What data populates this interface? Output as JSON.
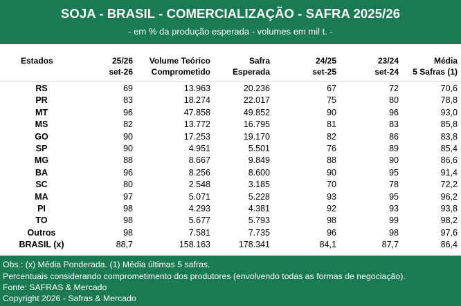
{
  "header": {
    "title": "SOJA - BRASIL - COMERCIALIZAÇÃO - SAFRA 2025/26",
    "subtitle": "- em % da produção esperada - volumes em mil t. -"
  },
  "columns": [
    {
      "line1": "Estados",
      "line2": ""
    },
    {
      "line1": "25/26",
      "line2": "set-26"
    },
    {
      "line1": "Volume Teórico",
      "line2": "Comprometido"
    },
    {
      "line1": "Safra",
      "line2": "Esperada"
    },
    {
      "line1": "24/25",
      "line2": "set-25"
    },
    {
      "line1": "23/24",
      "line2": "set-24"
    },
    {
      "line1": "Média",
      "line2": "5 Safras (1)"
    }
  ],
  "rows": [
    {
      "state": "RS",
      "c1": "69",
      "c2": "13.963",
      "c3": "20.236",
      "c4": "67",
      "c5": "72",
      "c6": "70,6"
    },
    {
      "state": "PR",
      "c1": "83",
      "c2": "18.274",
      "c3": "22.017",
      "c4": "75",
      "c5": "80",
      "c6": "78,8"
    },
    {
      "state": "MT",
      "c1": "96",
      "c2": "47.858",
      "c3": "49.852",
      "c4": "90",
      "c5": "96",
      "c6": "93,0"
    },
    {
      "state": "MS",
      "c1": "82",
      "c2": "13.772",
      "c3": "16.795",
      "c4": "81",
      "c5": "83",
      "c6": "85,8"
    },
    {
      "state": "GO",
      "c1": "90",
      "c2": "17.253",
      "c3": "19.170",
      "c4": "82",
      "c5": "86",
      "c6": "83,8"
    },
    {
      "state": "SP",
      "c1": "90",
      "c2": "4.951",
      "c3": "5.501",
      "c4": "76",
      "c5": "89",
      "c6": "85,4"
    },
    {
      "state": "MG",
      "c1": "88",
      "c2": "8.667",
      "c3": "9.849",
      "c4": "88",
      "c5": "90",
      "c6": "86,6"
    },
    {
      "state": "BA",
      "c1": "96",
      "c2": "8.256",
      "c3": "8.600",
      "c4": "90",
      "c5": "95",
      "c6": "91,4"
    },
    {
      "state": "SC",
      "c1": "80",
      "c2": "2.548",
      "c3": "3.185",
      "c4": "70",
      "c5": "78",
      "c6": "72,2"
    },
    {
      "state": "MA",
      "c1": "97",
      "c2": "5.071",
      "c3": "5.228",
      "c4": "93",
      "c5": "95",
      "c6": "96,2"
    },
    {
      "state": "PI",
      "c1": "98",
      "c2": "4.293",
      "c3": "4.381",
      "c4": "92",
      "c5": "93",
      "c6": "93,8"
    },
    {
      "state": "TO",
      "c1": "98",
      "c2": "5.677",
      "c3": "5.793",
      "c4": "98",
      "c5": "99",
      "c6": "98,2"
    },
    {
      "state": "Outros",
      "c1": "98",
      "c2": "7.581",
      "c3": "7.735",
      "c4": "96",
      "c5": "98",
      "c6": "97,6"
    },
    {
      "state": "BRASIL (x)",
      "c1": "88,7",
      "c2": "158.163",
      "c3": "178.341",
      "c4": "84,1",
      "c5": "87,7",
      "c6": "86,4"
    }
  ],
  "footer": {
    "obs": "Obs.: (x) Média Ponderada.  (1) Média últimas 5 safras.",
    "note": "Percentuais considerando comprometimento dos produtores (envolvendo todas as formas de negociação).",
    "source": "Fonte: SAFRAS & Mercado",
    "copyright": "Copyright 2026 - Safras & Mercado"
  },
  "colors": {
    "accent": "#1a7a52",
    "text": "#000000",
    "header_text": "#ffffff"
  }
}
